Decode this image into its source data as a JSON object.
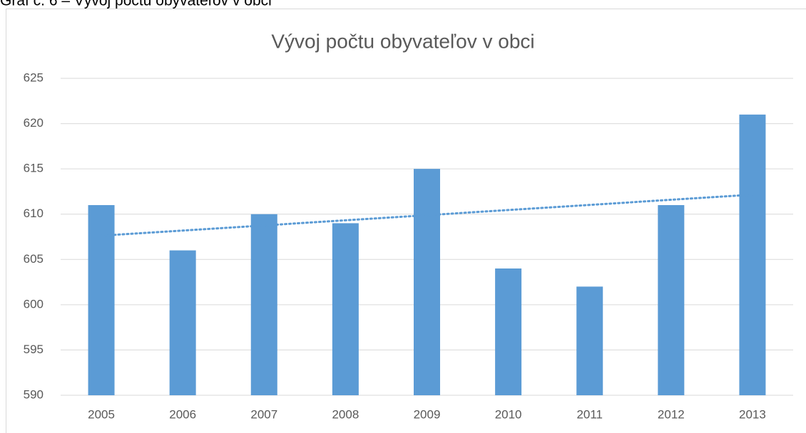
{
  "caption": "Graf č. 6 – Vývoj počtu obyvateľov v obci",
  "chart_data": {
    "type": "bar",
    "title": "Vývoj počtu obyvateľov v obci",
    "categories": [
      "2005",
      "2006",
      "2007",
      "2008",
      "2009",
      "2010",
      "2011",
      "2012",
      "2013"
    ],
    "values": [
      611,
      606,
      610,
      609,
      615,
      604,
      602,
      611,
      621
    ],
    "color": "#5b9bd5",
    "ylim": [
      590,
      625
    ],
    "yticks": [
      590,
      595,
      600,
      605,
      610,
      615,
      620,
      625
    ],
    "grid": true,
    "trendline": "linear"
  }
}
